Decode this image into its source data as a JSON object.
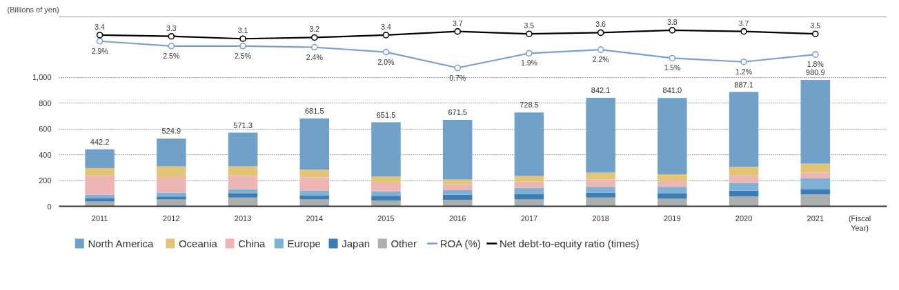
{
  "chart_data": {
    "type": "bar",
    "stacked": true,
    "ylabel": "(Billions of yen)",
    "xlabel": "(Fiscal Year)",
    "categories": [
      "2011",
      "2012",
      "2013",
      "2014",
      "2015",
      "2016",
      "2017",
      "2018",
      "2019",
      "2020",
      "2021"
    ],
    "ylim": [
      0,
      1470
    ],
    "yticks": [
      0,
      200,
      400,
      600,
      800,
      {
        "value": 1000,
        "label": "1,000"
      }
    ],
    "grid": "y",
    "legend": "bottom",
    "series": [
      {
        "name": "Other",
        "color": "#abafb0",
        "values": [
          37,
          54,
          68,
          54,
          46,
          50,
          54,
          68,
          59,
          76,
          94
        ]
      },
      {
        "name": "Japan",
        "color": "#3b7db4",
        "values": [
          26,
          22,
          31,
          31,
          35,
          40,
          40,
          39,
          40,
          45,
          40
        ]
      },
      {
        "name": "Europe",
        "color": "#7fb1d7",
        "values": [
          27,
          31,
          35,
          36,
          35,
          35,
          49,
          44,
          52,
          61,
          84
        ]
      },
      {
        "name": "China",
        "color": "#edb6b5",
        "values": [
          145,
          115,
          101,
          104,
          63,
          46,
          48,
          58,
          45,
          53,
          44
        ]
      },
      {
        "name": "Oceania",
        "color": "#e3c57a",
        "values": [
          62,
          88,
          75,
          59,
          52,
          38,
          44,
          53,
          53,
          71,
          70
        ]
      },
      {
        "name": "North America",
        "color": "#71a1c9",
        "values": [
          145.2,
          214.9,
          261.3,
          397.5,
          420.5,
          462.5,
          493.5,
          580.1,
          592,
          581.1,
          648.9
        ]
      },
      {
        "name": "ROA (%)",
        "type": "line",
        "axis": "y2",
        "color": "#7b9fd4",
        "marker": "circle",
        "values": [
          2.9,
          2.5,
          2.5,
          2.4,
          2.0,
          0.7,
          1.9,
          2.2,
          1.5,
          1.2,
          1.8
        ],
        "value_labels": [
          "2.9%",
          "2.5%",
          "2.5%",
          "2.4%",
          "2.0%",
          "0.7%",
          "1.9%",
          "2.2%",
          "1.5%",
          "1.2%",
          "1.8%"
        ]
      },
      {
        "name": "Net debt-to-equity ratio (times)",
        "type": "line",
        "axis": "y2",
        "color": "#000000",
        "marker": "circle",
        "values": [
          3.4,
          3.3,
          3.1,
          3.2,
          3.4,
          3.7,
          3.5,
          3.6,
          3.8,
          3.7,
          3.5
        ],
        "value_labels": [
          "3.4",
          "3.3",
          "3.1",
          "3.2",
          "3.4",
          "3.7",
          "3.5",
          "3.6",
          "3.8",
          "3.7",
          "3.5"
        ]
      }
    ],
    "y2lim": [
      -10.7,
      4.9
    ],
    "totals": [
      "442.2",
      "524.9",
      "571.3",
      "681.5",
      "651.5",
      "671.5",
      "728.5",
      "842.1",
      "841.0",
      "887.1",
      "980.9"
    ]
  }
}
